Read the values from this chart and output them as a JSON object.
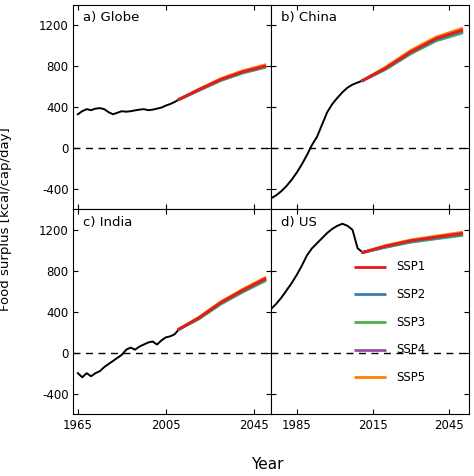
{
  "ylabel": "Food surplus [kcal/cap/day]",
  "xlabel": "Year",
  "panels": [
    "a) Globe",
    "b) China",
    "c) India",
    "d) US"
  ],
  "ylim": [
    -600,
    1400
  ],
  "yticks": [
    -400,
    0,
    400,
    800,
    1200
  ],
  "ssp_colors": {
    "SSP1": "#e41a1c",
    "SSP2": "#377eb8",
    "SSP3": "#4daf4a",
    "SSP4": "#984ea3",
    "SSP5": "#ff7f00"
  },
  "xlim_left": [
    1963,
    2053
  ],
  "xlim_right": [
    1975,
    2053
  ],
  "xticks_left": [
    1965,
    2005,
    2045
  ],
  "xticks_right": [
    1985,
    2015,
    2045
  ],
  "hist_years_globe": [
    1965,
    1967,
    1969,
    1971,
    1973,
    1975,
    1977,
    1979,
    1981,
    1983,
    1985,
    1987,
    1989,
    1991,
    1993,
    1995,
    1997,
    1999,
    2001,
    2003,
    2005,
    2007,
    2009,
    2011
  ],
  "hist_globe": [
    330,
    360,
    380,
    370,
    385,
    390,
    380,
    350,
    330,
    345,
    360,
    355,
    360,
    368,
    375,
    380,
    370,
    375,
    385,
    395,
    415,
    430,
    450,
    475
  ],
  "proj_years_globe": [
    2011,
    2020,
    2030,
    2040,
    2050
  ],
  "proj_globe": {
    "SSP1": [
      475,
      570,
      670,
      745,
      800
    ],
    "SSP2": [
      475,
      567,
      666,
      740,
      795
    ],
    "SSP3": [
      475,
      562,
      660,
      733,
      787
    ],
    "SSP4": [
      475,
      565,
      663,
      737,
      792
    ],
    "SSP5": [
      475,
      575,
      678,
      755,
      812
    ]
  },
  "hist_years_china": [
    1975,
    1977,
    1979,
    1981,
    1983,
    1985,
    1987,
    1989,
    1991,
    1993,
    1995,
    1997,
    1999,
    2001,
    2003,
    2005,
    2007,
    2009,
    2011
  ],
  "hist_china": [
    -490,
    -460,
    -420,
    -370,
    -310,
    -240,
    -160,
    -70,
    30,
    110,
    230,
    350,
    430,
    490,
    545,
    590,
    620,
    640,
    660
  ],
  "proj_years_china": [
    2011,
    2020,
    2030,
    2040,
    2050
  ],
  "proj_china": {
    "SSP1": [
      660,
      780,
      940,
      1070,
      1150
    ],
    "SSP2": [
      660,
      775,
      932,
      1060,
      1138
    ],
    "SSP3": [
      660,
      768,
      922,
      1048,
      1122
    ],
    "SSP4": [
      660,
      772,
      928,
      1055,
      1132
    ],
    "SSP5": [
      660,
      790,
      955,
      1085,
      1168
    ]
  },
  "hist_years_india": [
    1965,
    1967,
    1969,
    1971,
    1973,
    1975,
    1977,
    1979,
    1981,
    1983,
    1985,
    1987,
    1989,
    1991,
    1993,
    1995,
    1997,
    1999,
    2001,
    2003,
    2005,
    2007,
    2009,
    2011
  ],
  "hist_india": [
    -200,
    -240,
    -200,
    -230,
    -200,
    -180,
    -140,
    -110,
    -80,
    -50,
    -20,
    30,
    50,
    30,
    60,
    80,
    100,
    110,
    80,
    120,
    150,
    160,
    180,
    230
  ],
  "proj_years_india": [
    2011,
    2020,
    2030,
    2040,
    2050
  ],
  "proj_india": {
    "SSP1": [
      230,
      340,
      490,
      610,
      720
    ],
    "SSP2": [
      230,
      336,
      484,
      603,
      712
    ],
    "SSP3": [
      230,
      330,
      475,
      593,
      700
    ],
    "SSP4": [
      230,
      333,
      479,
      597,
      706
    ],
    "SSP5": [
      230,
      346,
      498,
      620,
      732
    ]
  },
  "hist_years_us": [
    1975,
    1977,
    1979,
    1981,
    1983,
    1985,
    1987,
    1989,
    1991,
    1993,
    1995,
    1997,
    1999,
    2001,
    2003,
    2005,
    2007,
    2009,
    2011
  ],
  "hist_us": [
    430,
    480,
    540,
    610,
    680,
    760,
    850,
    950,
    1020,
    1070,
    1120,
    1170,
    1210,
    1240,
    1260,
    1240,
    1200,
    1020,
    980
  ],
  "proj_years_us": [
    2011,
    2020,
    2030,
    2040,
    2050
  ],
  "proj_us": {
    "SSP1": [
      980,
      1040,
      1095,
      1130,
      1165
    ],
    "SSP2": [
      980,
      1036,
      1088,
      1122,
      1156
    ],
    "SSP3": [
      980,
      1030,
      1080,
      1113,
      1146
    ],
    "SSP4": [
      980,
      1033,
      1084,
      1118,
      1152
    ],
    "SSP5": [
      980,
      1048,
      1102,
      1140,
      1176
    ]
  }
}
